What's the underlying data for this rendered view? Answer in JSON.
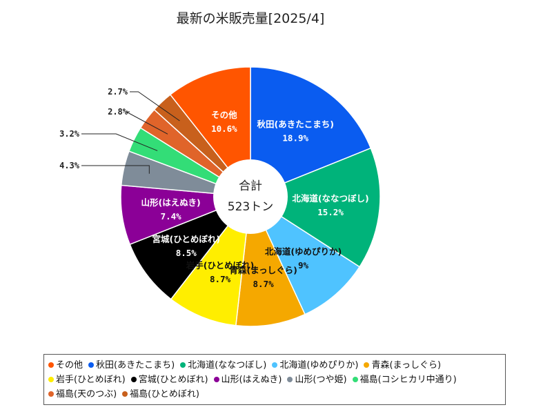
{
  "chart_data": {
    "type": "pie",
    "style": "donut",
    "title": "最新の米販売量[2025/4]",
    "center_label": [
      "合計",
      "523トン"
    ],
    "slices": [
      {
        "name": "秋田(あきたこまち)",
        "value": 18.9,
        "label": "18.9%",
        "color": "#0a5cf0",
        "label_text": "秋田(あきたこまち)",
        "label_color": "#ffffff"
      },
      {
        "name": "北海道(ななつぼし)",
        "value": 15.2,
        "label": "15.2%",
        "color": "#00b37a",
        "label_text": "北海道(ななつぼし)",
        "label_color": "#ffffff"
      },
      {
        "name": "北海道(ゆめぴりか)",
        "value": 9.0,
        "label": "9%",
        "color": "#4fc3ff",
        "label_text": "北海道(ゆめぴりか)",
        "label_color": "#111111"
      },
      {
        "name": "青森(まっしぐら)",
        "value": 8.7,
        "label": "8.7%",
        "color": "#f5a800",
        "label_text": "青森(まっしぐら)",
        "label_color": "#111111"
      },
      {
        "name": "岩手(ひとめぼれ)",
        "value": 8.7,
        "label": "8.7%",
        "color": "#ffee00",
        "label_text": "岩手(ひとめぼれ)",
        "label_color": "#111111"
      },
      {
        "name": "宮城(ひとめぼれ)",
        "value": 8.5,
        "label": "8.5%",
        "color": "#000000",
        "label_text": "宮城(ひとめぼれ)",
        "label_color": "#ffffff"
      },
      {
        "name": "山形(はえぬき)",
        "value": 7.4,
        "label": "7.4%",
        "color": "#8b0097",
        "label_text": "山形(はえぬき)",
        "label_color": "#ffffff"
      },
      {
        "name": "山形(つや姫)",
        "value": 4.3,
        "label": "4.3%",
        "color": "#7f8c99",
        "label_text": "",
        "label_color": "#111111"
      },
      {
        "name": "福島(コシヒカリ中通り)",
        "value": 3.2,
        "label": "3.2%",
        "color": "#33dd77",
        "label_text": "",
        "label_color": "#111111"
      },
      {
        "name": "福島(天のつぶ)",
        "value": 2.8,
        "label": "2.8%",
        "color": "#e0642a",
        "label_text": "",
        "label_color": "#111111"
      },
      {
        "name": "福島(ひとめぼれ)",
        "value": 2.7,
        "label": "2.7%",
        "color": "#c8601c",
        "label_text": "",
        "label_color": "#111111"
      },
      {
        "name": "その他",
        "value": 10.6,
        "label": "10.6%",
        "color": "#ff5500",
        "label_text": "その他",
        "label_color": "#ffffff"
      }
    ],
    "legend": {
      "placement": "bottom",
      "entries": [
        {
          "name": "その他",
          "color": "#ff5500"
        },
        {
          "name": "秋田(あきたこまち)",
          "color": "#0a5cf0"
        },
        {
          "name": "北海道(ななつぼし)",
          "color": "#00b37a"
        },
        {
          "name": "北海道(ゆめぴりか)",
          "color": "#4fc3ff"
        },
        {
          "name": "青森(まっしぐら)",
          "color": "#f5a800"
        },
        {
          "name": "岩手(ひとめぼれ)",
          "color": "#ffee00"
        },
        {
          "name": "宮城(ひとめぼれ)",
          "color": "#000000"
        },
        {
          "name": "山形(はえぬき)",
          "color": "#8b0097"
        },
        {
          "name": "山形(つや姫)",
          "color": "#7f8c99"
        },
        {
          "name": "福島(コシヒカリ中通り)",
          "color": "#33dd77"
        },
        {
          "name": "福島(天のつぶ)",
          "color": "#e0642a"
        },
        {
          "name": "福島(ひとめぼれ)",
          "color": "#c8601c"
        }
      ]
    }
  }
}
